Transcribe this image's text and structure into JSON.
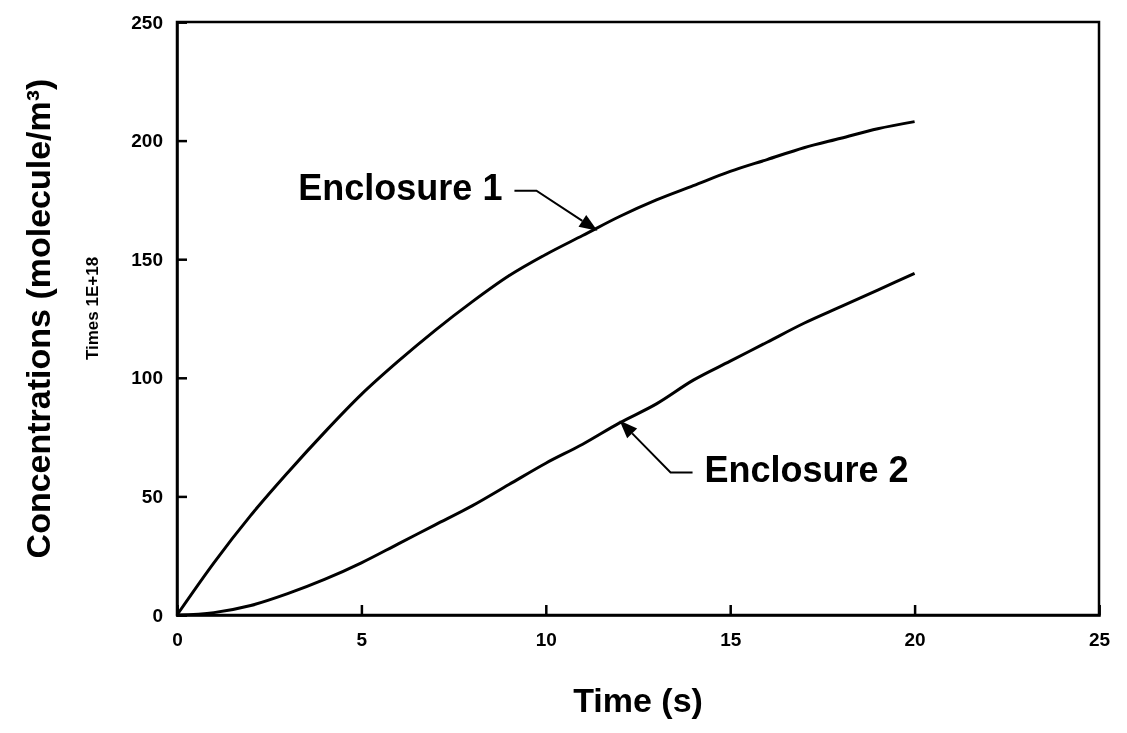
{
  "chart_data": {
    "type": "line",
    "xlabel": "Time (s)",
    "ylabel": "Concentrations (molecule/m³)",
    "x": [
      0,
      1,
      2,
      3,
      4,
      5,
      6,
      7,
      8,
      9,
      10,
      11,
      12,
      13,
      14,
      15,
      16,
      17,
      18,
      19,
      20
    ],
    "series": [
      {
        "color": "#000000",
        "values": [
          0,
          22,
          42,
          60,
          77,
          93,
          107,
          120,
          132,
          143,
          152,
          160,
          168,
          175,
          181,
          187,
          192,
          197,
          201,
          205,
          208
        ]
      },
      {
        "color": "#000000",
        "values": [
          0,
          1,
          4,
          9,
          15,
          22,
          30,
          38,
          46,
          55,
          64,
          72,
          81,
          89,
          99,
          107,
          115,
          123,
          130,
          137,
          144
        ]
      }
    ],
    "xlim": [
      0,
      25
    ],
    "xticks": [
      0,
      5,
      10,
      15,
      20,
      25
    ],
    "ylim": [
      0,
      250
    ],
    "yticks": [
      0,
      50,
      100,
      150,
      200,
      250
    ],
    "grid": false,
    "marker": "none",
    "line_style": "solid",
    "annotations": [
      {
        "text": "Enclosure 1",
        "x": 11.4,
        "y": 162
      },
      {
        "text": "Enclosure 2",
        "x": 12,
        "y": 82
      },
      "Times 1E+18"
    ]
  }
}
